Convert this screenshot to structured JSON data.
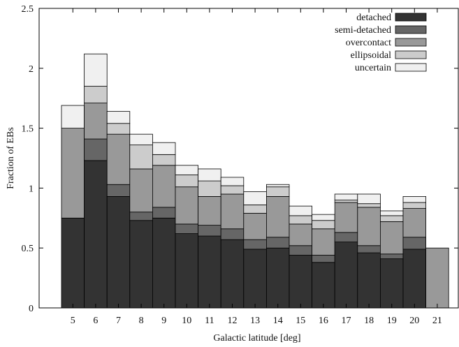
{
  "chart_data": {
    "type": "bar",
    "stacked": true,
    "xlabel": "Galactic latitude [deg]",
    "ylabel": "Fraction of EBs",
    "ylim": [
      0,
      2.5
    ],
    "yticks": [
      "0",
      "0.5",
      "1",
      "1.5",
      "2",
      "2.5"
    ],
    "ytick_values": [
      0,
      0.5,
      1,
      1.5,
      2,
      2.5
    ],
    "categories": [
      "5",
      "6",
      "7",
      "8",
      "9",
      "10",
      "11",
      "12",
      "13",
      "14",
      "15",
      "16",
      "17",
      "18",
      "19",
      "20",
      "21"
    ],
    "legend_position": "top-right",
    "grid": false,
    "series": [
      {
        "name": "detached",
        "color": "#333333",
        "values": [
          0.75,
          1.23,
          0.93,
          0.73,
          0.75,
          0.62,
          0.6,
          0.57,
          0.49,
          0.5,
          0.44,
          0.38,
          0.55,
          0.46,
          0.41,
          0.49,
          0
        ]
      },
      {
        "name": "semi-detached",
        "color": "#666666",
        "values": [
          0,
          0.18,
          0.1,
          0.07,
          0.09,
          0.08,
          0.09,
          0.09,
          0.08,
          0.09,
          0.08,
          0.06,
          0.08,
          0.06,
          0.04,
          0.1,
          0
        ]
      },
      {
        "name": "overcontact",
        "color": "#999999",
        "values": [
          0.75,
          0.3,
          0.42,
          0.36,
          0.35,
          0.31,
          0.24,
          0.29,
          0.22,
          0.34,
          0.18,
          0.22,
          0.25,
          0.32,
          0.27,
          0.24,
          0.5
        ]
      },
      {
        "name": "ellipsoidal",
        "color": "#cccccc",
        "values": [
          0,
          0.14,
          0.09,
          0.2,
          0.09,
          0.1,
          0.13,
          0.07,
          0.07,
          0.08,
          0.07,
          0.07,
          0.02,
          0.03,
          0.05,
          0.05,
          0
        ]
      },
      {
        "name": "uncertain",
        "color": "#f0f0f0",
        "values": [
          0.19,
          0.27,
          0.1,
          0.09,
          0.1,
          0.08,
          0.1,
          0.07,
          0.11,
          0.02,
          0.08,
          0.05,
          0.05,
          0.08,
          0.04,
          0.05,
          0
        ]
      }
    ]
  }
}
